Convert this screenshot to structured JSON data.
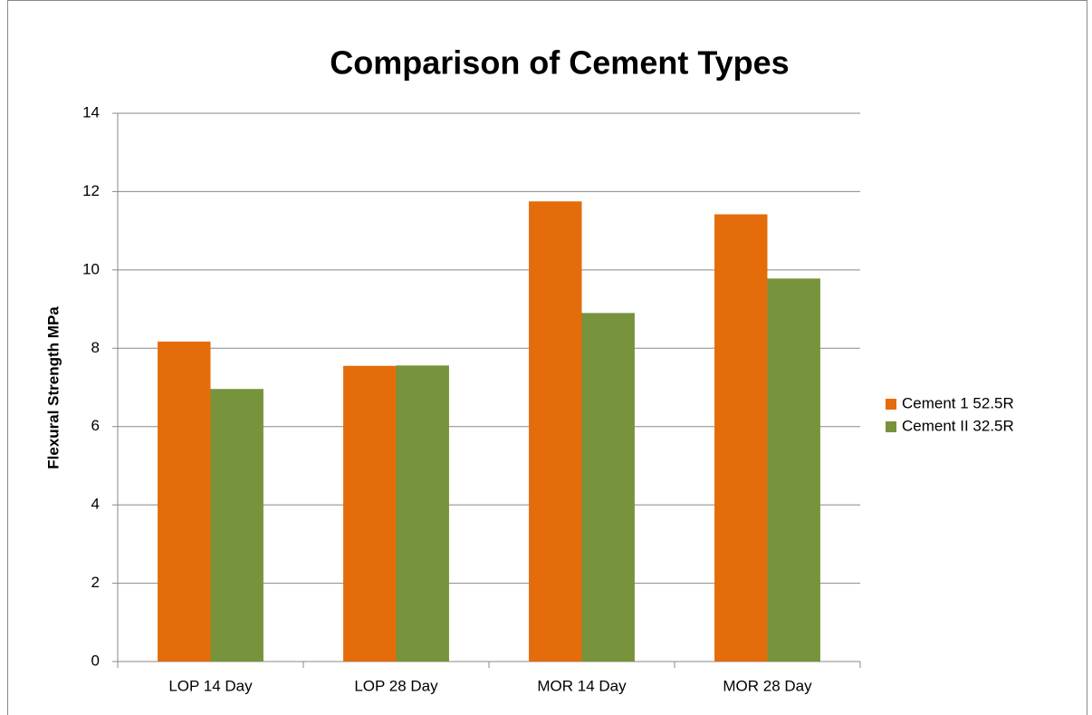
{
  "chart_data": {
    "type": "bar",
    "title": "Comparison of Cement Types",
    "y_label": "Flexural Strength MPa",
    "categories": [
      "LOP 14 Day",
      "LOP 28 Day",
      "MOR 14 Day",
      "MOR 28 Day"
    ],
    "series": [
      {
        "name": "Cement 1 52.5R",
        "color": "#e46c0a",
        "values": [
          8.17,
          7.55,
          11.75,
          11.42
        ]
      },
      {
        "name": "Cement II 32.5R",
        "color": "#77933c",
        "values": [
          6.96,
          7.56,
          8.9,
          9.78
        ]
      }
    ],
    "ylim": [
      0,
      14
    ],
    "yticks": [
      0,
      2,
      4,
      6,
      8,
      10,
      12,
      14
    ],
    "grid": true,
    "legend": "right"
  }
}
